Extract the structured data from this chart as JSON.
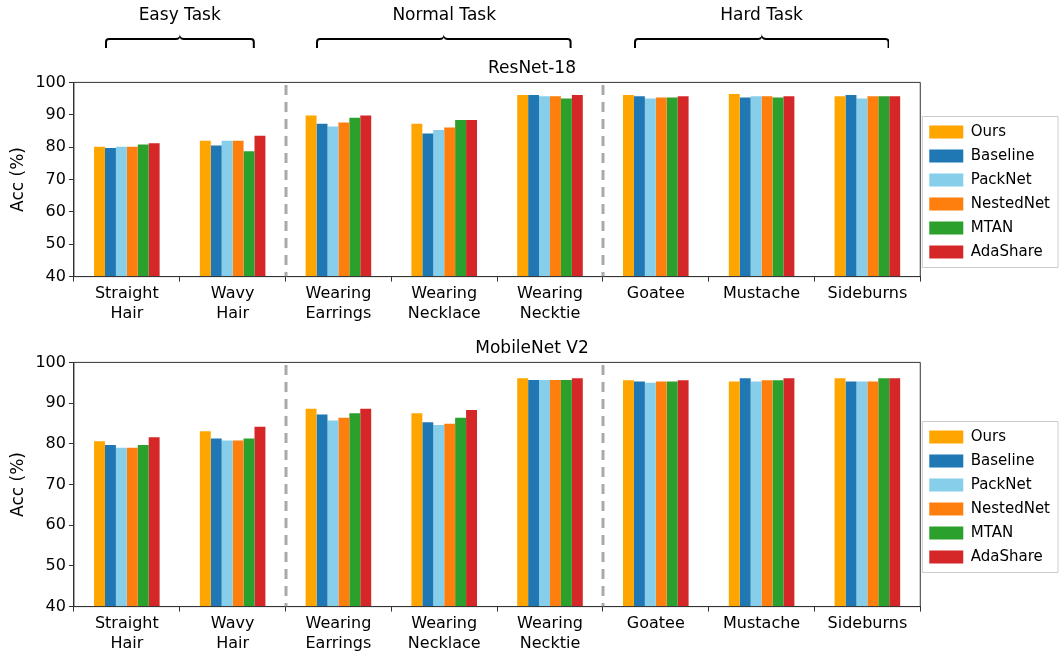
{
  "chart_data": [
    {
      "type": "bar",
      "title": "ResNet-18",
      "ylabel": "Acc (%)",
      "annotations": [
        "Easy Task",
        "Normal Task",
        "Hard Task"
      ],
      "categories": [
        "Straight Hair",
        "Wavy Hair",
        "Wearing Earrings",
        "Wearing Necklace",
        "Wearing Necktie",
        "Goatee",
        "Mustache",
        "Sideburns"
      ],
      "series": [
        {
          "name": "Ours",
          "color": "#ffa500",
          "values": [
            80.1,
            82.0,
            89.8,
            87.2,
            96.1,
            96.1,
            96.4,
            95.7
          ]
        },
        {
          "name": "Baseline",
          "color": "#1f77b4",
          "values": [
            79.7,
            80.5,
            87.2,
            84.2,
            96.1,
            95.7,
            95.3,
            96.1
          ]
        },
        {
          "name": "PackNet",
          "color": "#87ceeb",
          "values": [
            80.1,
            82.0,
            86.4,
            85.3,
            95.7,
            95.0,
            95.7,
            95.0
          ]
        },
        {
          "name": "NestedNet",
          "color": "#ff7f0e",
          "values": [
            80.1,
            82.0,
            87.6,
            86.1,
            95.7,
            95.3,
            95.7,
            95.7
          ]
        },
        {
          "name": "MTAN",
          "color": "#2ca02c",
          "values": [
            80.8,
            78.7,
            89.1,
            88.4,
            95.0,
            95.3,
            95.3,
            95.7
          ]
        },
        {
          "name": "AdaShare",
          "color": "#d62728",
          "values": [
            81.2,
            83.5,
            89.8,
            88.4,
            96.1,
            95.7,
            95.7,
            95.7
          ]
        }
      ],
      "ylim": [
        40,
        100
      ],
      "yticks": [
        40,
        50,
        60,
        70,
        80,
        90,
        100
      ],
      "grid": false,
      "legend": "right"
    },
    {
      "type": "bar",
      "title": "MobileNet V2",
      "ylabel": "Acc (%)",
      "categories": [
        "Straight Hair",
        "Wavy Hair",
        "Wearing Earrings",
        "Wearing Necklace",
        "Wearing Necktie",
        "Goatee",
        "Mustache",
        "Sideburns"
      ],
      "series": [
        {
          "name": "Ours",
          "color": "#ffa500",
          "values": [
            80.6,
            83.1,
            88.6,
            87.5,
            96.1,
            95.6,
            95.3,
            96.1
          ]
        },
        {
          "name": "Baseline",
          "color": "#1f77b4",
          "values": [
            79.7,
            81.3,
            87.2,
            85.3,
            95.7,
            95.3,
            96.1,
            95.3
          ]
        },
        {
          "name": "PackNet",
          "color": "#87ceeb",
          "values": [
            79.0,
            80.8,
            85.7,
            84.6,
            95.7,
            95.0,
            95.3,
            95.3
          ]
        },
        {
          "name": "NestedNet",
          "color": "#ff7f0e",
          "values": [
            79.0,
            80.8,
            86.4,
            84.9,
            95.7,
            95.3,
            95.6,
            95.3
          ]
        },
        {
          "name": "MTAN",
          "color": "#2ca02c",
          "values": [
            79.7,
            81.3,
            87.5,
            86.4,
            95.7,
            95.3,
            95.6,
            96.1
          ]
        },
        {
          "name": "AdaShare",
          "color": "#d62728",
          "values": [
            81.6,
            84.2,
            88.6,
            88.3,
            96.1,
            95.6,
            96.1,
            96.1
          ]
        }
      ],
      "ylim": [
        40,
        100
      ],
      "yticks": [
        40,
        50,
        60,
        70,
        80,
        90,
        100
      ],
      "grid": false,
      "legend": "right"
    }
  ]
}
